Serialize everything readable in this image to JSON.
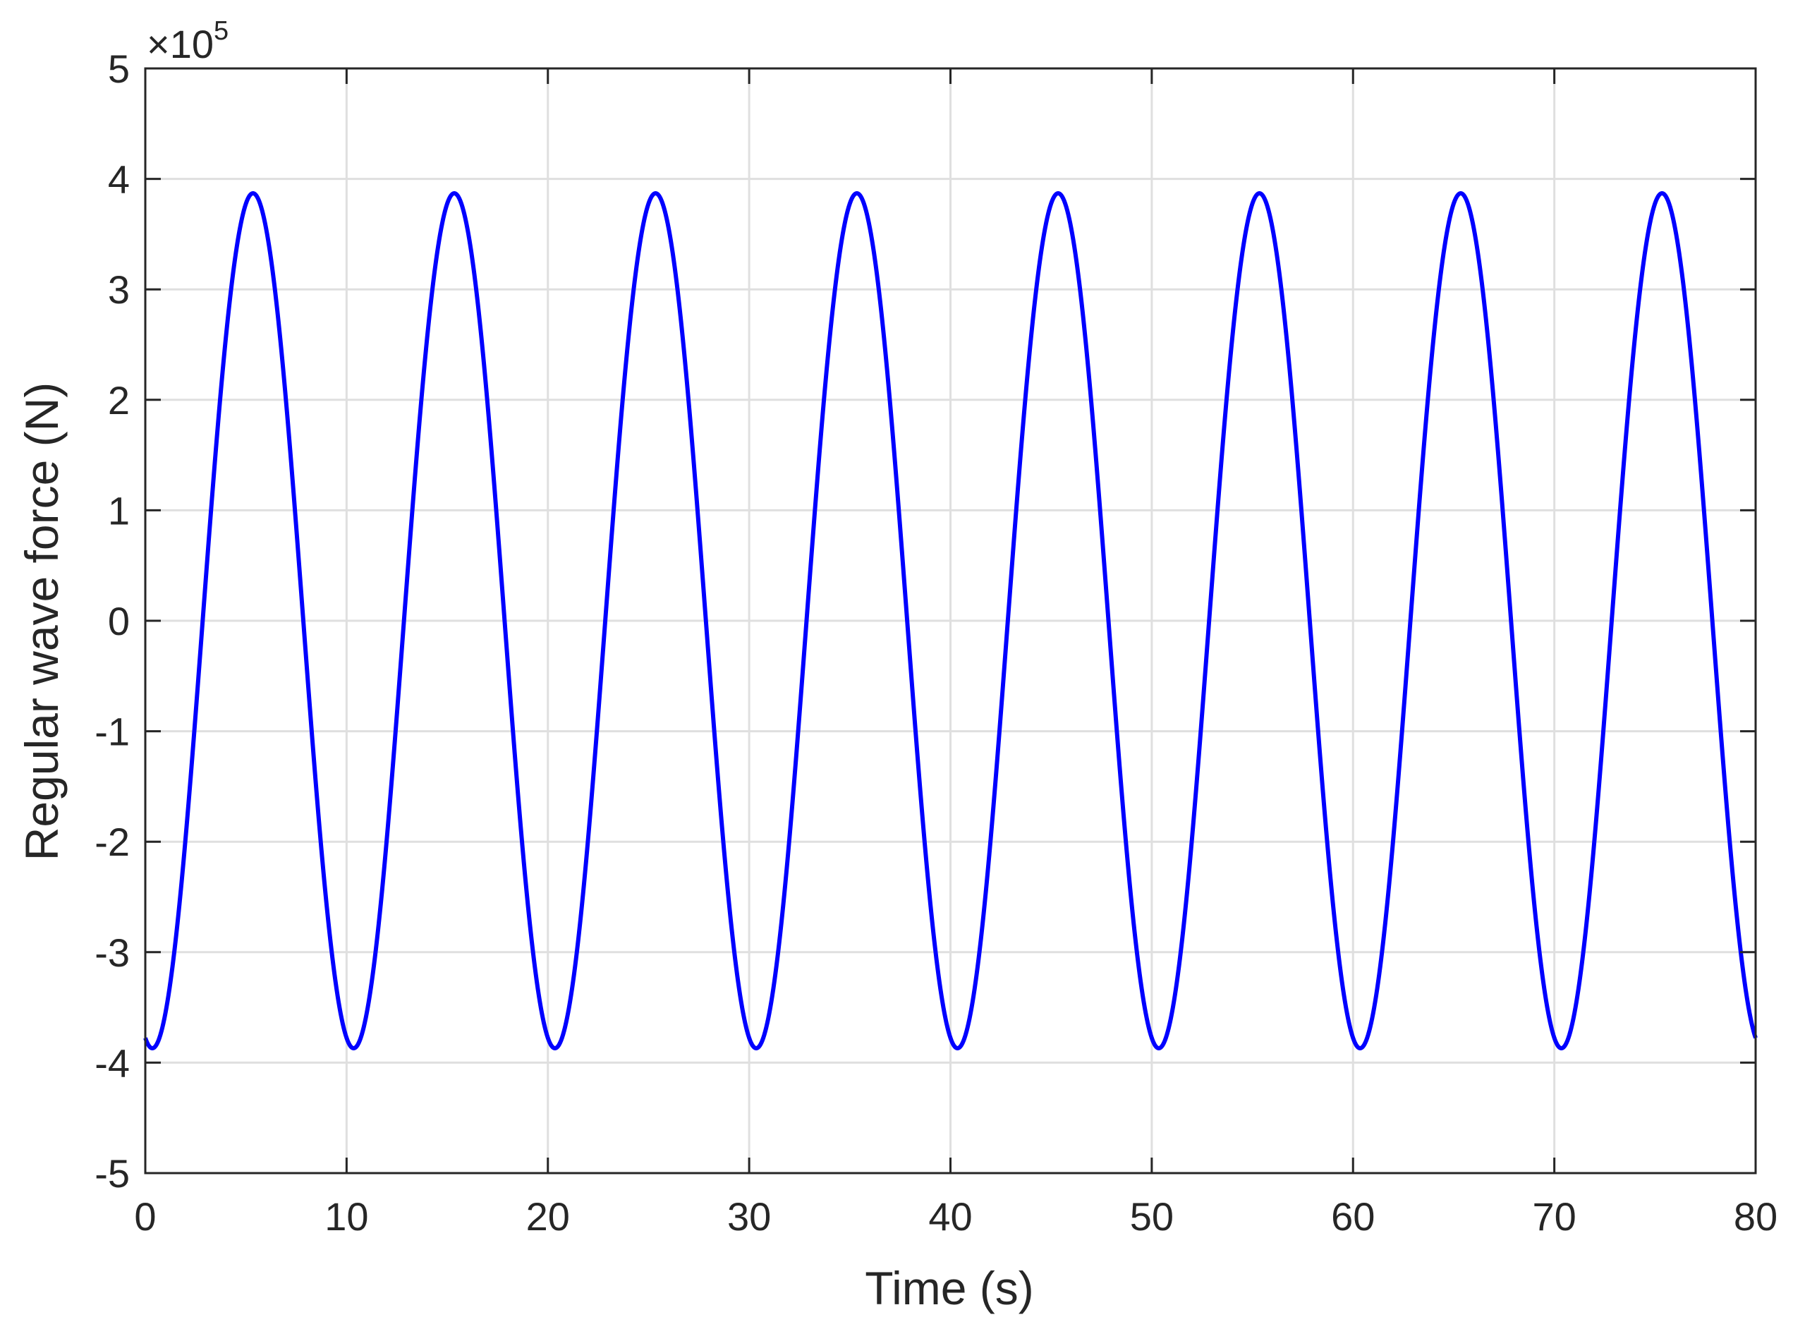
{
  "chart_data": {
    "type": "line",
    "title": "",
    "xlabel": "Time (s)",
    "ylabel": "Regular wave force (N)",
    "exponent_prefix": "×10",
    "exponent_power": "5",
    "xlim": [
      0,
      80
    ],
    "ylim": [
      -5,
      5
    ],
    "y_scale_factor": 100000,
    "grid": true,
    "x_ticks": [
      0,
      10,
      20,
      30,
      40,
      50,
      60,
      70,
      80
    ],
    "x_tick_labels": [
      "0",
      "10",
      "20",
      "30",
      "40",
      "50",
      "60",
      "70",
      "80"
    ],
    "y_ticks": [
      -5,
      -4,
      -3,
      -2,
      -1,
      0,
      1,
      2,
      3,
      4,
      5
    ],
    "y_tick_labels": [
      "-5",
      "-4",
      "-3",
      "-2",
      "-1",
      "0",
      "1",
      "2",
      "3",
      "4",
      "5"
    ],
    "series": [
      {
        "color": "#0000ff",
        "amplitude": 3.87,
        "period_s": 10,
        "first_minimum_s": 0.35,
        "peaks": [
          {
            "x": 5.35,
            "y": 3.87
          },
          {
            "x": 15.35,
            "y": 3.87
          },
          {
            "x": 25.35,
            "y": 3.87
          },
          {
            "x": 35.35,
            "y": 3.87
          },
          {
            "x": 45.35,
            "y": 3.87
          },
          {
            "x": 55.35,
            "y": 3.87
          },
          {
            "x": 65.35,
            "y": 3.87
          },
          {
            "x": 75.35,
            "y": 3.87
          }
        ],
        "troughs": [
          {
            "x": 0.35,
            "y": -3.87
          },
          {
            "x": 10.35,
            "y": -3.87
          },
          {
            "x": 20.35,
            "y": -3.87
          },
          {
            "x": 30.35,
            "y": -3.87
          },
          {
            "x": 40.35,
            "y": -3.87
          },
          {
            "x": 50.35,
            "y": -3.87
          },
          {
            "x": 60.35,
            "y": -3.87
          },
          {
            "x": 70.35,
            "y": -3.87
          }
        ],
        "start": {
          "x": 0,
          "y": -3.78
        },
        "end": {
          "x": 80,
          "y": -3.78
        }
      }
    ]
  }
}
